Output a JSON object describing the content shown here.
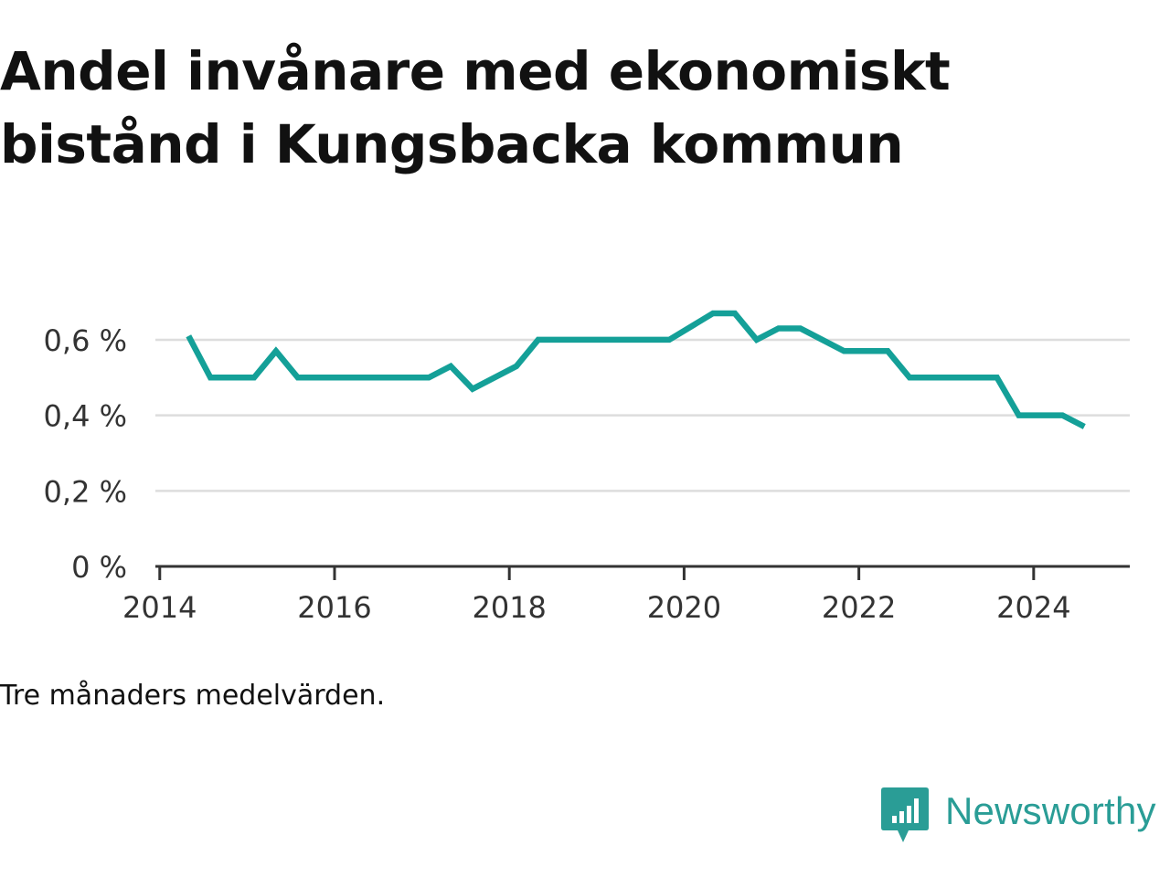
{
  "title": "Andel invånare med ekonomiskt bistånd i Kungsbacka kommun",
  "note": "Tre månaders medelvärden.",
  "brand": {
    "name": "Newsworthy",
    "color": "#2a9d96",
    "icon": "newsworthy-logo-icon"
  },
  "colors": {
    "line": "#14a098",
    "grid": "#dddddd",
    "axis": "#333333",
    "text": "#111111"
  },
  "chart_data": {
    "type": "line",
    "title": "Andel invånare med ekonomiskt bistånd i Kungsbacka kommun",
    "xlabel": "",
    "ylabel": "",
    "xlim": [
      2013.95,
      2025.1
    ],
    "ylim": [
      0,
      0.67
    ],
    "grid": true,
    "legend": "none",
    "y_ticks": [
      {
        "value": 0,
        "label": "0 %"
      },
      {
        "value": 0.2,
        "label": "0,2 %"
      },
      {
        "value": 0.4,
        "label": "0,4 %"
      },
      {
        "value": 0.6,
        "label": "0,6 %"
      }
    ],
    "x_ticks": [
      {
        "value": 2014,
        "label": "2014"
      },
      {
        "value": 2016,
        "label": "2016"
      },
      {
        "value": 2018,
        "label": "2018"
      },
      {
        "value": 2020,
        "label": "2020"
      },
      {
        "value": 2022,
        "label": "2022"
      },
      {
        "value": 2024,
        "label": "2024"
      }
    ],
    "series": [
      {
        "name": "Andel invånare med ekonomiskt bistånd",
        "points": [
          [
            2014.33,
            0.61
          ],
          [
            2014.58,
            0.5
          ],
          [
            2015.08,
            0.5
          ],
          [
            2015.33,
            0.57
          ],
          [
            2015.58,
            0.5
          ],
          [
            2017.08,
            0.5
          ],
          [
            2017.33,
            0.53
          ],
          [
            2017.58,
            0.47
          ],
          [
            2018.08,
            0.53
          ],
          [
            2018.33,
            0.6
          ],
          [
            2019.83,
            0.6
          ],
          [
            2020.33,
            0.67
          ],
          [
            2020.58,
            0.67
          ],
          [
            2020.83,
            0.6
          ],
          [
            2021.08,
            0.63
          ],
          [
            2021.33,
            0.63
          ],
          [
            2021.83,
            0.57
          ],
          [
            2022.33,
            0.57
          ],
          [
            2022.58,
            0.5
          ],
          [
            2023.58,
            0.5
          ],
          [
            2023.83,
            0.4
          ],
          [
            2024.33,
            0.4
          ],
          [
            2024.58,
            0.37
          ]
        ]
      }
    ]
  }
}
